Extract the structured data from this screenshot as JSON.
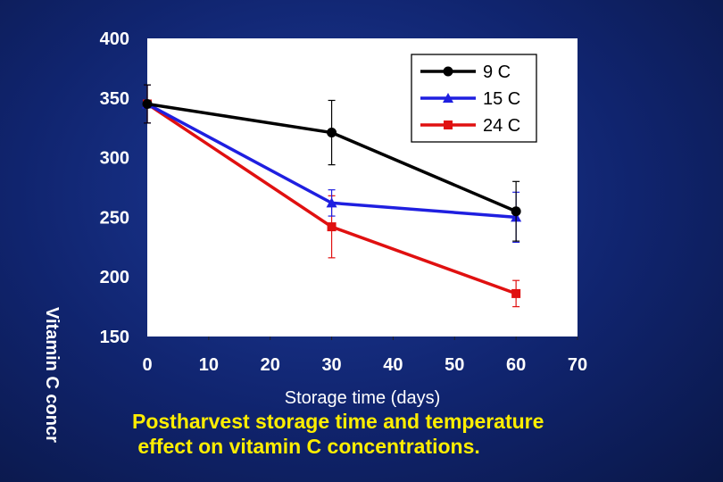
{
  "chart_data": {
    "type": "line",
    "title": "",
    "xlabel": "Storage time (days)",
    "ylabel": "Vitamin C concr",
    "xlim": [
      0,
      70
    ],
    "ylim": [
      150,
      400
    ],
    "xticks": [
      0,
      10,
      20,
      30,
      40,
      50,
      60,
      70
    ],
    "yticks": [
      150,
      200,
      250,
      300,
      350,
      400
    ],
    "x": [
      0,
      30,
      60
    ],
    "series": [
      {
        "name": "9 C",
        "color": "#000000",
        "marker": "circle",
        "values": [
          345,
          321,
          255
        ],
        "errors": [
          16,
          27,
          25
        ]
      },
      {
        "name": "15 C",
        "color": "#1f1fe0",
        "marker": "triangle",
        "values": [
          345,
          262,
          250
        ],
        "errors": [
          16,
          11,
          21
        ]
      },
      {
        "name": "24 C",
        "color": "#e01010",
        "marker": "square",
        "values": [
          345,
          242,
          186
        ],
        "errors": [
          16,
          26,
          11
        ]
      }
    ],
    "legend_position": "top-right"
  },
  "caption": {
    "line1": "Postharvest storage time and temperature",
    "line2": " effect on vitamin C concentrations."
  }
}
